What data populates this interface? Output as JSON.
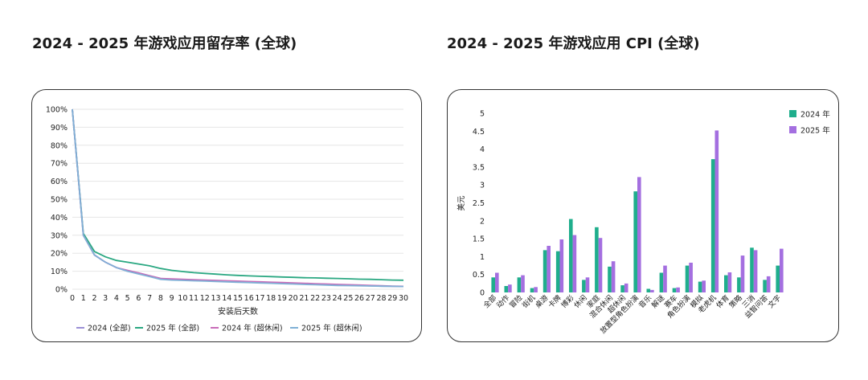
{
  "chart_data": [
    {
      "type": "line",
      "title": "2024 - 2025 年游戏应用留存率 (全球)",
      "xlabel": "安装后天数",
      "ylabel": "",
      "x": [
        0,
        1,
        2,
        3,
        4,
        5,
        6,
        7,
        8,
        9,
        10,
        11,
        12,
        13,
        14,
        15,
        16,
        17,
        18,
        19,
        20,
        21,
        22,
        23,
        24,
        25,
        26,
        27,
        28,
        29,
        30
      ],
      "ylim": [
        0,
        100
      ],
      "yticks": [
        "0%",
        "10%",
        "20%",
        "30%",
        "40%",
        "50%",
        "60%",
        "70%",
        "80%",
        "90%",
        "100%"
      ],
      "grid": true,
      "legend": "bottom",
      "series": [
        {
          "name": "2024 (全部)",
          "color": "#9b8fd6",
          "values": [
            100,
            30,
            19,
            15,
            12,
            10,
            9,
            7.5,
            6,
            5.5,
            5.3,
            5.1,
            4.9,
            4.7,
            4.5,
            4.3,
            4.1,
            3.9,
            3.7,
            3.5,
            3.3,
            3.1,
            2.9,
            2.7,
            2.5,
            2.3,
            2.1,
            1.9,
            1.7,
            1.6,
            1.5
          ]
        },
        {
          "name": "2025 年 (全部)",
          "color": "#2ba882",
          "values": [
            100,
            31,
            21,
            18,
            16,
            15,
            14,
            13,
            11.5,
            10.5,
            9.8,
            9.2,
            8.8,
            8.4,
            8.0,
            7.7,
            7.4,
            7.2,
            7.0,
            6.8,
            6.6,
            6.4,
            6.3,
            6.1,
            6.0,
            5.8,
            5.6,
            5.5,
            5.3,
            5.1,
            5.0
          ]
        },
        {
          "name": "2024 年 (超休闲)",
          "color": "#c86bb8",
          "values": [
            100,
            30,
            19,
            15,
            12,
            10.5,
            9,
            7.5,
            6,
            5.7,
            5.5,
            5.3,
            5.1,
            4.9,
            4.7,
            4.5,
            4.3,
            4.1,
            3.9,
            3.7,
            3.5,
            3.3,
            3.1,
            2.9,
            2.7,
            2.5,
            2.3,
            2.1,
            1.9,
            1.7,
            1.6
          ]
        },
        {
          "name": "2025 年 (超休闲)",
          "color": "#7fb0d6",
          "values": [
            100,
            30,
            19,
            15,
            12,
            10,
            8.5,
            7,
            5.5,
            5.1,
            4.9,
            4.7,
            4.5,
            4.3,
            4.1,
            3.9,
            3.7,
            3.5,
            3.3,
            3.1,
            2.9,
            2.7,
            2.5,
            2.3,
            2.1,
            2.0,
            1.9,
            1.8,
            1.7,
            1.6,
            1.5
          ]
        }
      ]
    },
    {
      "type": "bar",
      "title": "2024 - 2025 年游戏应用 CPI (全球)",
      "xlabel": "",
      "ylabel": "美元",
      "ylim": [
        0,
        5
      ],
      "yticks": [
        "0",
        "0.5",
        "1",
        "1.5",
        "2",
        "2.5",
        "3",
        "3.5",
        "4",
        "4.5",
        "5"
      ],
      "legend": "top-right",
      "categories": [
        "全部",
        "动作",
        "冒险",
        "街机",
        "桌游",
        "卡牌",
        "博彩",
        "休闲",
        "家庭",
        "混合休闲",
        "超休闲",
        "放置型角色扮演",
        "音乐",
        "解谜",
        "赛车",
        "角色扮演",
        "模拟",
        "老虎机",
        "体育",
        "策略",
        "三消",
        "益智问答",
        "文字"
      ],
      "series": [
        {
          "name": "2024 年",
          "color": "#1fae8c",
          "values": [
            0.42,
            0.18,
            0.42,
            0.12,
            1.18,
            1.15,
            2.05,
            0.35,
            1.82,
            0.72,
            0.2,
            2.82,
            0.1,
            0.55,
            0.12,
            0.75,
            0.3,
            3.72,
            0.48,
            0.42,
            1.25,
            0.35,
            0.75
          ]
        },
        {
          "name": "2025 年",
          "color": "#a46fe0",
          "values": [
            0.55,
            0.22,
            0.48,
            0.15,
            1.3,
            1.48,
            1.6,
            0.42,
            1.52,
            0.87,
            0.25,
            3.22,
            0.07,
            0.75,
            0.14,
            0.83,
            0.33,
            4.52,
            0.56,
            1.03,
            1.18,
            0.45,
            1.22
          ]
        }
      ]
    }
  ]
}
